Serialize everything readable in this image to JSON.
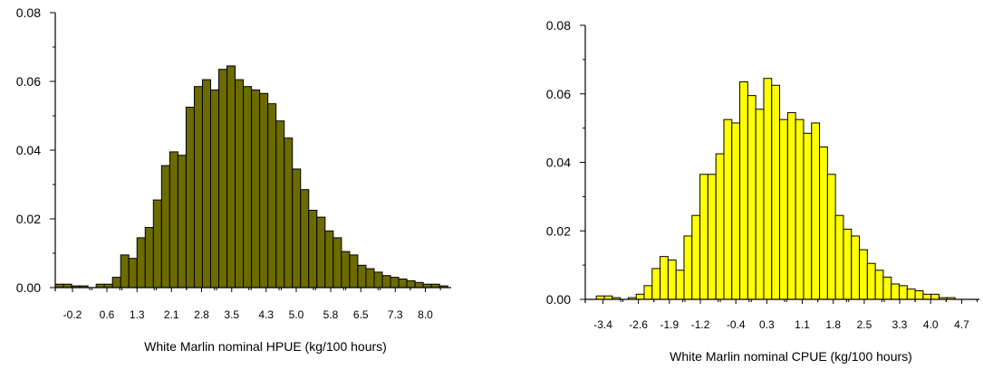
{
  "chart_data": [
    {
      "type": "bar",
      "xlabel": "White Marlin nominal HPUE (kg/100 hours)",
      "ylabel": "",
      "ylim": [
        0,
        0.08
      ],
      "xlim": [
        -0.6,
        8.6
      ],
      "yticks": [
        "0.00",
        "0.02",
        "0.04",
        "0.06",
        "0.08"
      ],
      "xticks": [
        "-0.2",
        "0.6",
        "1.3",
        "2.1",
        "2.8",
        "3.5",
        "4.3",
        "5.0",
        "5.8",
        "6.5",
        "7.3",
        "8.0"
      ],
      "bar_color": "#6b6b00",
      "bin_start": -0.6,
      "bin_width": 0.19,
      "values": [
        0.001,
        0.001,
        0.0005,
        0.0005,
        0.0,
        0.001,
        0.001,
        0.003,
        0.0095,
        0.0085,
        0.0145,
        0.0175,
        0.0255,
        0.0355,
        0.0395,
        0.0385,
        0.0525,
        0.0585,
        0.0605,
        0.0575,
        0.0635,
        0.0645,
        0.0605,
        0.0585,
        0.0575,
        0.0565,
        0.0535,
        0.0485,
        0.0435,
        0.0345,
        0.0285,
        0.0225,
        0.0205,
        0.0165,
        0.0145,
        0.0105,
        0.0095,
        0.0065,
        0.0055,
        0.0045,
        0.0035,
        0.003,
        0.0025,
        0.002,
        0.0015,
        0.001,
        0.001,
        0.0005,
        0.0
      ]
    },
    {
      "type": "bar",
      "xlabel": "White Marlin nominal CPUE (kg/100 hours)",
      "ylabel": "",
      "ylim": [
        0,
        0.08
      ],
      "xlim": [
        -3.8,
        5.1
      ],
      "yticks": [
        "0.00",
        "0.02",
        "0.04",
        "0.06",
        "0.08"
      ],
      "xticks": [
        "-3.4",
        "-2.6",
        "-1.9",
        "-1.2",
        "-0.4",
        "0.3",
        "1.1",
        "1.8",
        "2.5",
        "3.3",
        "4.0",
        "4.7"
      ],
      "bar_color": "#ffff00",
      "bin_start": -3.55,
      "bin_width": 0.18,
      "values": [
        0.001,
        0.001,
        0.0005,
        0.0,
        0.0005,
        0.0015,
        0.004,
        0.009,
        0.0125,
        0.0115,
        0.0085,
        0.0185,
        0.0245,
        0.0365,
        0.0365,
        0.0425,
        0.0525,
        0.0515,
        0.0635,
        0.0595,
        0.0555,
        0.0645,
        0.0625,
        0.0525,
        0.0545,
        0.0525,
        0.0485,
        0.0515,
        0.0445,
        0.0365,
        0.0245,
        0.0205,
        0.0185,
        0.0145,
        0.0105,
        0.0085,
        0.0065,
        0.0045,
        0.004,
        0.003,
        0.0025,
        0.0015,
        0.0015,
        0.0005,
        0.0005,
        0.0
      ]
    }
  ]
}
